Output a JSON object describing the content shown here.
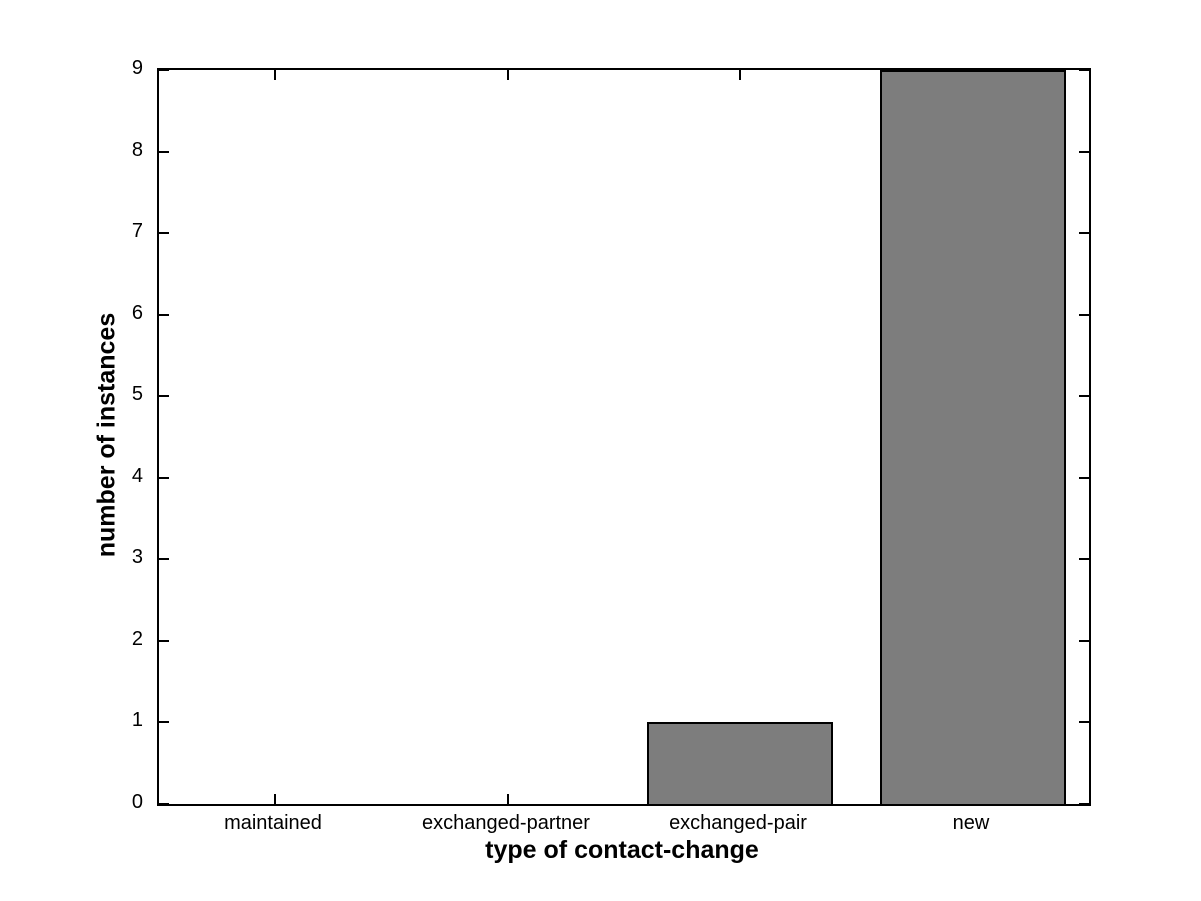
{
  "chart_data": {
    "type": "bar",
    "title": "",
    "categories": [
      "maintained",
      "exchanged-partner",
      "exchanged-pair",
      "new"
    ],
    "values": [
      0,
      0,
      1,
      9
    ],
    "xlabel": "type of contact-change",
    "ylabel": "number of instances",
    "ylim": [
      0,
      9
    ],
    "yticks": [
      0,
      1,
      2,
      3,
      4,
      5,
      6,
      7,
      8,
      9
    ],
    "bar_width_fraction": 0.8,
    "grid": false,
    "legend": null,
    "layout_hints": {
      "box": "on",
      "tick_direction": "in",
      "ticks_mirrored": true
    },
    "colors": {
      "bar_fill": "#7d7d7d",
      "bar_edge": "#000000",
      "axis": "#000000",
      "text": "#000000",
      "background": "#ffffff"
    }
  }
}
